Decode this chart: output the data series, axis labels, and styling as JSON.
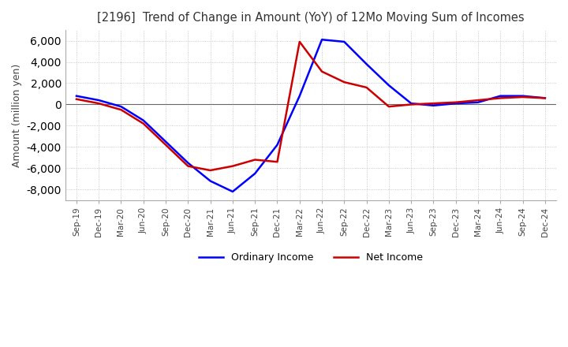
{
  "title": "[2196]  Trend of Change in Amount (YoY) of 12Mo Moving Sum of Incomes",
  "ylabel": "Amount (million yen)",
  "ylim": [
    -9000,
    7000
  ],
  "yticks": [
    -8000,
    -6000,
    -4000,
    -2000,
    0,
    2000,
    4000,
    6000
  ],
  "x_labels": [
    "Sep-19",
    "Dec-19",
    "Mar-20",
    "Jun-20",
    "Sep-20",
    "Dec-20",
    "Mar-21",
    "Jun-21",
    "Sep-21",
    "Dec-21",
    "Mar-22",
    "Jun-22",
    "Sep-22",
    "Dec-22",
    "Mar-23",
    "Jun-23",
    "Sep-23",
    "Dec-23",
    "Mar-24",
    "Jun-24",
    "Sep-24",
    "Dec-24"
  ],
  "ordinary_income": [
    800,
    400,
    -200,
    -1500,
    -3500,
    -5500,
    -7200,
    -8200,
    -6500,
    -3800,
    800,
    6100,
    5900,
    3800,
    1800,
    100,
    -100,
    100,
    200,
    800,
    800,
    600
  ],
  "net_income": [
    500,
    100,
    -500,
    -1800,
    -3800,
    -5800,
    -6200,
    -5800,
    -5200,
    -5400,
    5900,
    3100,
    2100,
    1600,
    -200,
    0,
    100,
    200,
    400,
    600,
    700,
    600
  ],
  "ordinary_color": "#0000ff",
  "net_color": "#cc0000",
  "line_width": 1.8,
  "background_color": "#ffffff",
  "grid_color": "#bbbbbb",
  "title_color": "#333333",
  "title_bracket_color": "#cc0000"
}
